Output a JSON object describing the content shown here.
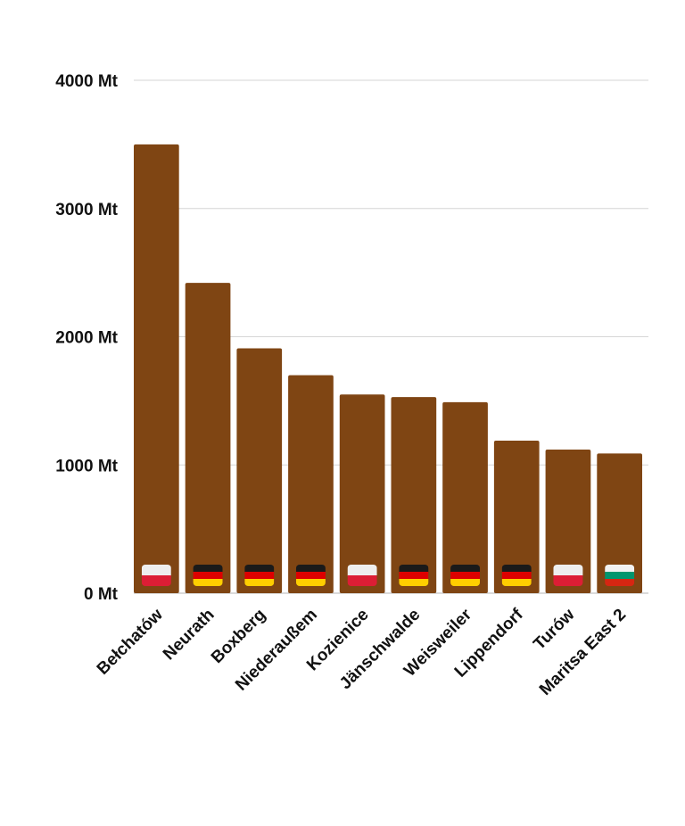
{
  "chart_data": {
    "type": "bar",
    "categories": [
      "Bełchatów",
      "Neurath",
      "Boxberg",
      "Niederaußem",
      "Kozienice",
      "Jänschwalde",
      "Weisweiler",
      "Lippendorf",
      "Turów",
      "Maritsa East 2"
    ],
    "values": [
      3500,
      2420,
      1910,
      1700,
      1550,
      1530,
      1490,
      1190,
      1120,
      1090
    ],
    "flags": [
      "poland",
      "germany",
      "germany",
      "germany",
      "poland",
      "germany",
      "germany",
      "germany",
      "poland",
      "bulgaria"
    ],
    "yticks": [
      {
        "value": 0,
        "label": "0 Mt"
      },
      {
        "value": 1000,
        "label": "1000 Mt"
      },
      {
        "value": 2000,
        "label": "2000 Mt"
      },
      {
        "value": 3000,
        "label": "3000 Mt"
      },
      {
        "value": 4000,
        "label": "4000 Mt"
      }
    ],
    "ylim": [
      0,
      4000
    ],
    "grid": true,
    "bar_color": "#7f4513",
    "flag_colors": {
      "poland": [
        "#eeeeee",
        "#dc1e35"
      ],
      "germany": [
        "#1a1a1a",
        "#dd0000",
        "#ffce00"
      ],
      "bulgaria": [
        "#f2f2f2",
        "#00966e",
        "#d62612"
      ]
    }
  }
}
